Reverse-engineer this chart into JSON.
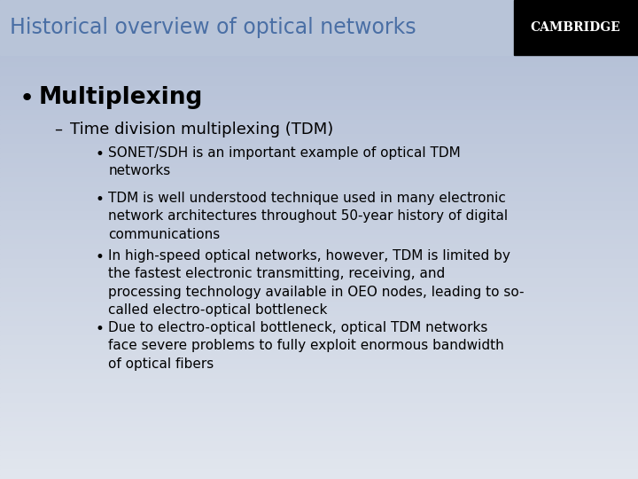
{
  "title": "Historical overview of optical networks",
  "title_color": "#4a6fa5",
  "title_bar_color": "#b8c4d8",
  "cambridge_text": "CAMBRIDGE",
  "cambridge_bg": "#000000",
  "cambridge_text_color": "#ffffff",
  "bg_top": "#b8c4d8",
  "bg_bottom": "#d8dfe8",
  "bullet1": "Multiplexing",
  "bullet1_size": 19,
  "sub1": "Time division multiplexing (TDM)",
  "sub1_size": 13,
  "sub_bullets": [
    "SONET/SDH is an important example of optical TDM\nnetworks",
    "TDM is well understood technique used in many electronic\nnetwork architectures throughout 50-year history of digital\ncommunications",
    "In high-speed optical networks, however, TDM is limited by\nthe fastest electronic transmitting, receiving, and\nprocessing technology available in OEO nodes, leading to so-\ncalled electro-optical bottleneck",
    "Due to electro-optical bottleneck, optical TDM networks\nface severe problems to fully exploit enormous bandwidth\nof optical fibers"
  ],
  "sub_bullet_size": 11,
  "title_font_size": 17
}
